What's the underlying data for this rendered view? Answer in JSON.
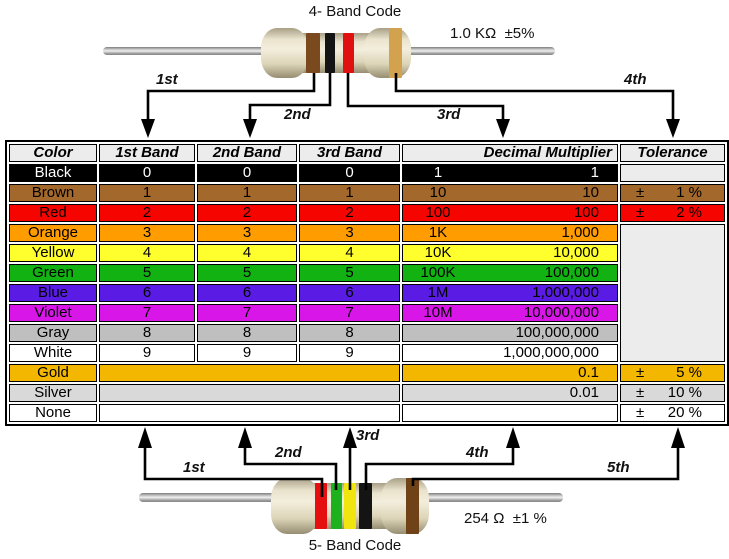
{
  "top_resistor": {
    "title": "4- Band Code",
    "value_label": "1.0 KΩ  ±5%",
    "band_labels": [
      "1st",
      "2nd",
      "3rd",
      "4th"
    ],
    "bands": [
      {
        "name": "brown",
        "color": "#7a4a1e"
      },
      {
        "name": "black",
        "color": "#141414"
      },
      {
        "name": "red",
        "color": "#e11010"
      },
      {
        "name": "gold",
        "color": "#d2a24f"
      }
    ]
  },
  "bottom_resistor": {
    "title": "5- Band Code",
    "value_label": "254 Ω  ±1 %",
    "band_labels": [
      "1st",
      "2nd",
      "3rd",
      "4th",
      "5th"
    ],
    "bands": [
      {
        "name": "red",
        "color": "#e60f0f"
      },
      {
        "name": "green",
        "color": "#1db11d"
      },
      {
        "name": "yellow",
        "color": "#f0e50e"
      },
      {
        "name": "black",
        "color": "#141414"
      },
      {
        "name": "brown",
        "color": "#6f4218"
      }
    ]
  },
  "table": {
    "headers": {
      "color": "Color",
      "band1": "1st Band",
      "band2": "2nd Band",
      "band3": "3rd Band",
      "multiplier": "Decimal Multiplier",
      "tolerance": "Tolerance"
    },
    "rows": [
      {
        "name": "Black",
        "bg": "#000000",
        "fg": "#ffffff",
        "bands": [
          "0",
          "0",
          "0"
        ],
        "mult_short": "1",
        "mult_full": "1",
        "tol": {
          "sign": "",
          "value": ""
        },
        "tol_bg": "#ececec"
      },
      {
        "name": "Brown",
        "bg": "#a2682c",
        "fg": "#000000",
        "bands": [
          "1",
          "1",
          "1"
        ],
        "mult_short": "10",
        "mult_full": "10",
        "tol": {
          "sign": "±",
          "value": "1 %"
        }
      },
      {
        "name": "Red",
        "bg": "#f60400",
        "fg": "#000000",
        "bands": [
          "2",
          "2",
          "2"
        ],
        "mult_short": "100",
        "mult_full": "100",
        "tol": {
          "sign": "±",
          "value": "2 %"
        }
      },
      {
        "name": "Orange",
        "bg": "#ff9c00",
        "fg": "#000000",
        "bands": [
          "3",
          "3",
          "3"
        ],
        "mult_short": "1K",
        "mult_full": "1,000",
        "tol_rowspan": 7,
        "tol_bg": "#ececec"
      },
      {
        "name": "Yellow",
        "bg": "#ffff2e",
        "fg": "#000000",
        "bands": [
          "4",
          "4",
          "4"
        ],
        "mult_short": "10K",
        "mult_full": "10,000",
        "tol_skip": true
      },
      {
        "name": "Green",
        "bg": "#12b212",
        "fg": "#000000",
        "bands": [
          "5",
          "5",
          "5"
        ],
        "mult_short": "100K",
        "mult_full": "100,000",
        "tol_skip": true
      },
      {
        "name": "Blue",
        "bg": "#5a1ce4",
        "fg": "#000000",
        "bands": [
          "6",
          "6",
          "6"
        ],
        "mult_short": "1M",
        "mult_full": "1,000,000",
        "tol_skip": true
      },
      {
        "name": "Violet",
        "bg": "#d916e8",
        "fg": "#000000",
        "bands": [
          "7",
          "7",
          "7"
        ],
        "mult_short": "10M",
        "mult_full": "10,000,000",
        "tol_skip": true
      },
      {
        "name": "Gray",
        "bg": "#bfbfbf",
        "fg": "#000000",
        "bands": [
          "8",
          "8",
          "8"
        ],
        "mult_short": "",
        "mult_full": "100,000,000",
        "tol_skip": true
      },
      {
        "name": "White",
        "bg": "#ffffff",
        "fg": "#000000",
        "bands": [
          "9",
          "9",
          "9"
        ],
        "mult_short": "",
        "mult_full": "1,000,000,000",
        "tol_skip": true
      },
      {
        "name": "Gold",
        "bg": "#f3b700",
        "fg": "#000000",
        "bands_merged": true,
        "mult_short": "",
        "mult_full": "0.1",
        "tol": {
          "sign": "±",
          "value": "5 %"
        }
      },
      {
        "name": "Silver",
        "bg": "#d9d9d9",
        "fg": "#000000",
        "bands_merged": true,
        "mult_short": "",
        "mult_full": "0.01",
        "tol": {
          "sign": "±",
          "value": "10 %"
        }
      },
      {
        "name": "None",
        "bg": "#ffffff",
        "fg": "#000000",
        "bands_merged": true,
        "mult_short": "",
        "mult_full": "",
        "tol": {
          "sign": "±",
          "value": "20 %"
        }
      }
    ]
  },
  "colors": {
    "header_bg": "#ececec",
    "empty_tolerance_bg": "#ececec",
    "border": "#000000",
    "resistor_body": "#e9e2cc",
    "wire": "#b5b5b5"
  }
}
